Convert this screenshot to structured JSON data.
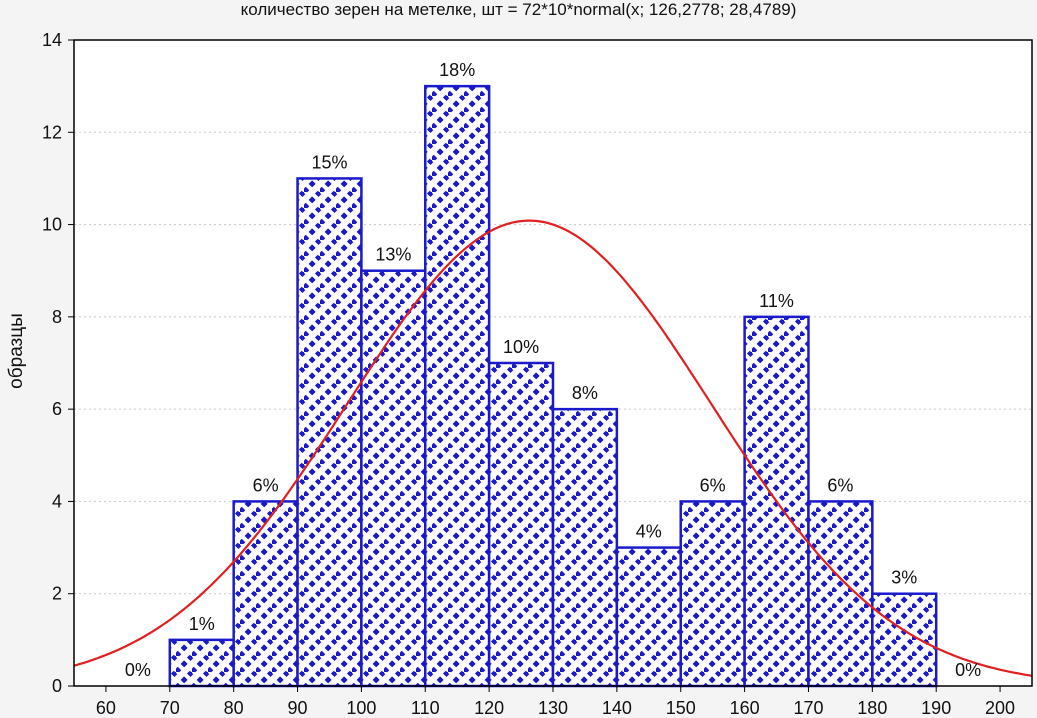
{
  "chart_data": {
    "type": "bar",
    "title": "количество зерен на метелке, шт = 72*10*normal(x; 126,2778; 28,4789)",
    "ylabel": "образцы",
    "xlabel": "",
    "x_ticks": [
      "60",
      "70",
      "80",
      "90",
      "100",
      "110",
      "120",
      "130",
      "140",
      "150",
      "160",
      "170",
      "180",
      "190",
      "200"
    ],
    "y_ticks": [
      "0",
      "2",
      "4",
      "6",
      "8",
      "10",
      "12",
      "14"
    ],
    "xlim": [
      55,
      205
    ],
    "ylim": [
      0,
      14
    ],
    "bins": [
      {
        "from": 60,
        "to": 70,
        "value": 0,
        "label": "0%"
      },
      {
        "from": 70,
        "to": 80,
        "value": 1,
        "label": "1%"
      },
      {
        "from": 80,
        "to": 90,
        "value": 4,
        "label": "6%"
      },
      {
        "from": 90,
        "to": 100,
        "value": 11,
        "label": "15%"
      },
      {
        "from": 100,
        "to": 110,
        "value": 9,
        "label": "13%"
      },
      {
        "from": 110,
        "to": 120,
        "value": 13,
        "label": "18%"
      },
      {
        "from": 120,
        "to": 130,
        "value": 7,
        "label": "10%"
      },
      {
        "from": 130,
        "to": 140,
        "value": 6,
        "label": "8%"
      },
      {
        "from": 140,
        "to": 150,
        "value": 3,
        "label": "4%"
      },
      {
        "from": 150,
        "to": 160,
        "value": 4,
        "label": "6%"
      },
      {
        "from": 160,
        "to": 170,
        "value": 8,
        "label": "11%"
      },
      {
        "from": 170,
        "to": 180,
        "value": 4,
        "label": "6%"
      },
      {
        "from": 180,
        "to": 190,
        "value": 2,
        "label": "3%"
      },
      {
        "from": 190,
        "to": 200,
        "value": 0,
        "label": "0%"
      }
    ],
    "fit_curve": {
      "type": "normal",
      "n": 72,
      "bin_width": 10,
      "mean": 126.2778,
      "sd": 28.4789,
      "color": "#e02020"
    },
    "bar_color": "#1a1acc",
    "grid": true
  }
}
